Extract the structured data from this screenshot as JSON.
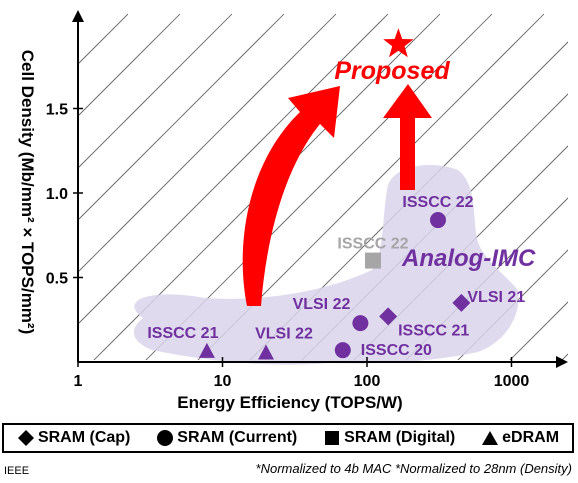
{
  "chart_data": {
    "type": "scatter",
    "xlabel": "Energy Efficiency (TOPS/W)",
    "ylabel": "Cell Density (Mb/mm² × TOPS/mm²)",
    "x_scale": "log",
    "xlim": [
      1,
      3000
    ],
    "ylim": [
      0,
      2.0
    ],
    "x_ticks": [
      "1",
      "10",
      "100",
      "1000"
    ],
    "y_ticks": [
      "0.5",
      "1.0",
      "1.5"
    ],
    "grid": false,
    "region_label": "Analog-IMC",
    "proposed_label": "Proposed",
    "points": [
      {
        "label": "ISSCC 21",
        "x": 7.8,
        "y": 0.06,
        "marker": "triangle",
        "color": "#7030a0"
      },
      {
        "label": "VLSI 22",
        "x": 20,
        "y": 0.05,
        "marker": "triangle",
        "color": "#7030a0"
      },
      {
        "label": "ISSCC 20",
        "x": 68,
        "y": 0.07,
        "marker": "circle",
        "color": "#7030a0"
      },
      {
        "label": "VLSI 22",
        "x": 90,
        "y": 0.23,
        "marker": "circle",
        "color": "#7030a0"
      },
      {
        "label": "ISSCC 21",
        "x": 140,
        "y": 0.27,
        "marker": "diamond",
        "color": "#7030a0"
      },
      {
        "label": "VLSI 21",
        "x": 450,
        "y": 0.35,
        "marker": "diamond",
        "color": "#7030a0"
      },
      {
        "label": "ISSCC 22",
        "x": 310,
        "y": 0.84,
        "marker": "circle",
        "color": "#7030a0"
      },
      {
        "label": "ISSCC 22",
        "x": 110,
        "y": 0.6,
        "marker": "square",
        "color": "#a6a6a6"
      },
      {
        "label": "",
        "x": 165,
        "y": 1.88,
        "marker": "star",
        "color": "#ff0000"
      }
    ],
    "legend": [
      "SRAM (Cap)",
      "SRAM (Current)",
      "SRAM (Digital)",
      "eDRAM"
    ]
  },
  "footer": {
    "source": "IEEE",
    "note": "*Normalized to 4b MAC  *Normalized to 28nm (Density)"
  }
}
